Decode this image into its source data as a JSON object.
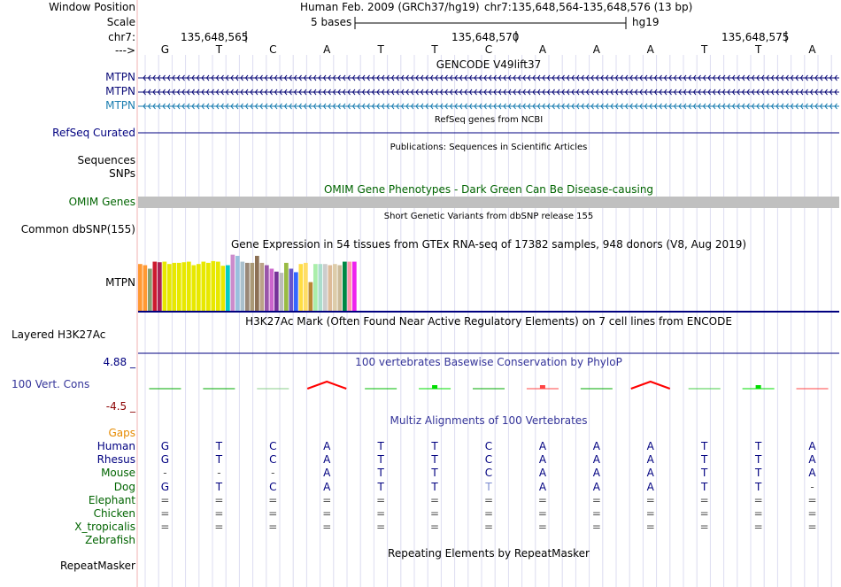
{
  "header": {
    "window_position_label": "Window Position",
    "assembly_text": "Human Feb. 2009 (GRCh37/hg19)",
    "position_text": "chr7:135,648,564-135,648,576 (13 bp)",
    "scale_label": "Scale",
    "scale_bar_text": "5 bases",
    "scale_db": "hg19",
    "chrom_label": "chr7:",
    "strand_label": "--->",
    "ruler_ticks": [
      "135,648,565",
      "135,648,570",
      "135,648,575"
    ]
  },
  "sequence": [
    "G",
    "T",
    "C",
    "A",
    "T",
    "T",
    "C",
    "A",
    "A",
    "A",
    "T",
    "T",
    "A"
  ],
  "tracks": {
    "gencode": {
      "title": "GENCODE V49lift37",
      "genes": [
        "MTPN",
        "MTPN",
        "MTPN"
      ]
    },
    "refseq": {
      "title": "RefSeq genes from NCBI",
      "label": "RefSeq Curated"
    },
    "publications": {
      "title": "Publications: Sequences in Scientific Articles",
      "labels": [
        "Sequences",
        "SNPs"
      ]
    },
    "omim": {
      "title": "OMIM Gene Phenotypes - Dark Green Can Be Disease-causing",
      "label": "OMIM Genes"
    },
    "dbsnp": {
      "title": "Short Genetic Variants from dbSNP release 155",
      "label": "Common dbSNP(155)"
    },
    "gtex": {
      "title": "Gene Expression in 54 tissues from GTEx RNA-seq of 17382 samples, 948 donors (V8, Aug 2019)",
      "label": "MTPN",
      "bars": [
        {
          "level": 0.8,
          "color": "#ff9933"
        },
        {
          "level": 0.78,
          "color": "#ff9933"
        },
        {
          "level": 0.72,
          "color": "#88a070"
        },
        {
          "level": 0.84,
          "color": "#cc1a2e"
        },
        {
          "level": 0.83,
          "color": "#aa2255"
        },
        {
          "level": 0.84,
          "color": "#e8e800"
        },
        {
          "level": 0.8,
          "color": "#e8e800"
        },
        {
          "level": 0.82,
          "color": "#e8e800"
        },
        {
          "level": 0.82,
          "color": "#e8e800"
        },
        {
          "level": 0.83,
          "color": "#e8e800"
        },
        {
          "level": 0.84,
          "color": "#e8e800"
        },
        {
          "level": 0.78,
          "color": "#e8e800"
        },
        {
          "level": 0.8,
          "color": "#e8e800"
        },
        {
          "level": 0.84,
          "color": "#e8e800"
        },
        {
          "level": 0.82,
          "color": "#e8e800"
        },
        {
          "level": 0.85,
          "color": "#e8e800"
        },
        {
          "level": 0.84,
          "color": "#e8e800"
        },
        {
          "level": 0.77,
          "color": "#e8e800"
        },
        {
          "level": 0.78,
          "color": "#00ccc8"
        },
        {
          "level": 0.96,
          "color": "#cc8ccc"
        },
        {
          "level": 0.94,
          "color": "#99c0dd"
        },
        {
          "level": 0.84,
          "color": "#aac0cc"
        },
        {
          "level": 0.82,
          "color": "#998877"
        },
        {
          "level": 0.82,
          "color": "#aa9977"
        },
        {
          "level": 0.94,
          "color": "#8c7055"
        },
        {
          "level": 0.82,
          "color": "#bba388"
        },
        {
          "level": 0.78,
          "color": "#9955aa"
        },
        {
          "level": 0.72,
          "color": "#cc66cc"
        },
        {
          "level": 0.67,
          "color": "#773399"
        },
        {
          "level": 0.65,
          "color": "#bbbbbb"
        },
        {
          "level": 0.82,
          "color": "#99bb44"
        },
        {
          "level": 0.72,
          "color": "#6655cc"
        },
        {
          "level": 0.66,
          "color": "#3366ff"
        },
        {
          "level": 0.8,
          "color": "#ffdd44"
        },
        {
          "level": 0.82,
          "color": "#ffdd66"
        },
        {
          "level": 0.49,
          "color": "#bb8833"
        },
        {
          "level": 0.8,
          "color": "#aaeeaa"
        },
        {
          "level": 0.8,
          "color": "#aaddcc"
        },
        {
          "level": 0.8,
          "color": "#cccccc"
        },
        {
          "level": 0.78,
          "color": "#ddbb99"
        },
        {
          "level": 0.8,
          "color": "#ddccaa"
        },
        {
          "level": 0.78,
          "color": "#ccbb99"
        },
        {
          "level": 0.84,
          "color": "#008844"
        },
        {
          "level": 0.84,
          "color": "#ff99aa"
        },
        {
          "level": 0.84,
          "color": "#ee22ee"
        }
      ]
    },
    "h3k27ac": {
      "title": "H3K27Ac Mark (Often Found Near Active Regulatory Elements) on 7 cell lines from ENCODE",
      "label": "Layered H3K27Ac"
    },
    "phylop": {
      "title": "100 vertebrates Basewise Conservation by PhyloP",
      "label": "100 Vert. Cons",
      "max_label": "4.88 _",
      "min_label": "-4.5 _",
      "scores": [
        0.0,
        0.0,
        -0.1,
        1.0,
        0.2,
        0.4,
        0.0,
        0.3,
        0.0,
        1.0,
        0.1,
        0.3,
        0.2
      ],
      "score_colors": [
        "#00aa00",
        "#00aa00",
        "#88cc88",
        "#ff0000",
        "#00bb00",
        "#00dd00",
        "#00aa00",
        "#ff4444",
        "#00aa00",
        "#ff0000",
        "#44cc44",
        "#00dd00",
        "#ff4444"
      ]
    },
    "multiz": {
      "title": "Multiz Alignments of 100 Vertebrates",
      "gaps_label": "Gaps",
      "species": [
        {
          "name": "Human",
          "bases": [
            "G",
            "T",
            "C",
            "A",
            "T",
            "T",
            "C",
            "A",
            "A",
            "A",
            "T",
            "T",
            "A"
          ]
        },
        {
          "name": "Rhesus",
          "bases": [
            "G",
            "T",
            "C",
            "A",
            "T",
            "T",
            "C",
            "A",
            "A",
            "A",
            "T",
            "T",
            "A"
          ]
        },
        {
          "name": "Mouse",
          "bases": [
            "-",
            "-",
            "-",
            "A",
            "T",
            "T",
            "C",
            "A",
            "A",
            "A",
            "T",
            "T",
            "A"
          ]
        },
        {
          "name": "Dog",
          "bases": [
            "G",
            "T",
            "C",
            "A",
            "T",
            "T",
            "T",
            "A",
            "A",
            "A",
            "T",
            "T",
            "-"
          ]
        },
        {
          "name": "Elephant",
          "bases": [
            "=",
            "=",
            "=",
            "=",
            "=",
            "=",
            "=",
            "=",
            "=",
            "=",
            "=",
            "=",
            "="
          ]
        },
        {
          "name": "Chicken",
          "bases": [
            "=",
            "=",
            "=",
            "=",
            "=",
            "=",
            "=",
            "=",
            "=",
            "=",
            "=",
            "=",
            "="
          ]
        },
        {
          "name": "X_tropicalis",
          "bases": [
            "=",
            "=",
            "=",
            "=",
            "=",
            "=",
            "=",
            "=",
            "=",
            "=",
            "=",
            "=",
            "="
          ]
        },
        {
          "name": "Zebrafish",
          "bases": [
            "",
            "",
            "",
            "",
            "",
            "",
            "",
            "",
            "",
            "",
            "",
            "",
            ""
          ]
        }
      ]
    },
    "repeatmasker": {
      "title": "Repeating Elements by RepeatMasker",
      "label": "RepeatMasker"
    }
  },
  "colors": {
    "navy": "#000080",
    "gencode_canonical": "#0c0c78",
    "gencode_alt": "#1a7db0",
    "omim_green": "#006400",
    "omim_bar": "#c0c0c0",
    "phylop_label": "#333399",
    "phylop_max": "#000080",
    "phylop_min": "#8b0000",
    "gaps": "#e68a00",
    "multiz_species": "#006400",
    "gridline": "#dcdcf0",
    "left_border": "#f0b0b0",
    "dog_mismatch": "#7a8ad0"
  }
}
